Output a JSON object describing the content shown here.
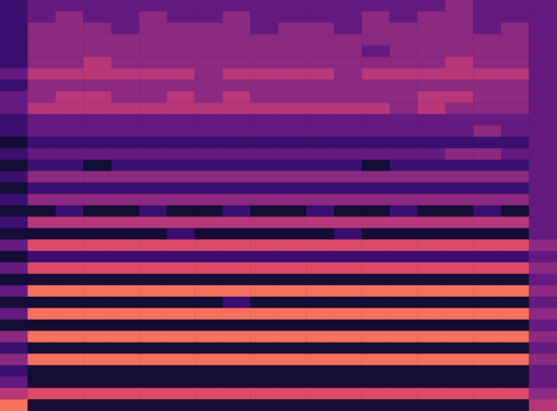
{
  "chart_data": {
    "type": "heatmap",
    "tick_labels": false,
    "grid": false,
    "value_range": [
      0,
      10
    ],
    "cells": [
      [
        2,
        3,
        3,
        3,
        3,
        3,
        3,
        3,
        3,
        3,
        3,
        3,
        3,
        3,
        3,
        3,
        4,
        3,
        3,
        3
      ],
      [
        2,
        3,
        4,
        3,
        3,
        4,
        3,
        3,
        4,
        3,
        3,
        3,
        3,
        4,
        3,
        4,
        4,
        3,
        3,
        3
      ],
      [
        2,
        4,
        4,
        4,
        3,
        4,
        4,
        4,
        4,
        3,
        4,
        4,
        3,
        4,
        4,
        4,
        4,
        3,
        4,
        3
      ],
      [
        2,
        4,
        4,
        4,
        4,
        4,
        4,
        4,
        4,
        4,
        4,
        4,
        4,
        4,
        4,
        4,
        4,
        4,
        4,
        3
      ],
      [
        2,
        4,
        4,
        4,
        4,
        4,
        4,
        4,
        4,
        4,
        4,
        4,
        4,
        3,
        4,
        4,
        4,
        4,
        4,
        3
      ],
      [
        2,
        4,
        4,
        5,
        4,
        4,
        4,
        4,
        4,
        4,
        4,
        4,
        4,
        4,
        4,
        4,
        5,
        4,
        4,
        3
      ],
      [
        3,
        5,
        5,
        5,
        5,
        5,
        5,
        4,
        5,
        5,
        5,
        5,
        4,
        5,
        5,
        5,
        5,
        5,
        5,
        3
      ],
      [
        2,
        4,
        4,
        4,
        4,
        4,
        4,
        4,
        4,
        4,
        4,
        4,
        4,
        4,
        4,
        4,
        4,
        4,
        4,
        3
      ],
      [
        3,
        4,
        5,
        5,
        4,
        4,
        5,
        4,
        5,
        4,
        4,
        4,
        4,
        4,
        4,
        5,
        5,
        4,
        4,
        3
      ],
      [
        3,
        5,
        5,
        5,
        5,
        5,
        5,
        5,
        5,
        5,
        5,
        5,
        5,
        5,
        4,
        5,
        4,
        4,
        4,
        3
      ],
      [
        2,
        3,
        3,
        3,
        3,
        3,
        3,
        3,
        3,
        3,
        3,
        3,
        3,
        3,
        3,
        3,
        3,
        3,
        3,
        3
      ],
      [
        2,
        3,
        3,
        3,
        3,
        3,
        3,
        3,
        3,
        3,
        3,
        3,
        3,
        3,
        3,
        3,
        3,
        4,
        3,
        3
      ],
      [
        1,
        2,
        2,
        2,
        2,
        2,
        2,
        2,
        2,
        2,
        2,
        2,
        2,
        2,
        2,
        2,
        2,
        2,
        2,
        3
      ],
      [
        2,
        3,
        3,
        3,
        3,
        3,
        3,
        3,
        3,
        3,
        3,
        3,
        3,
        3,
        3,
        3,
        4,
        4,
        3,
        3
      ],
      [
        1,
        2,
        2,
        1,
        2,
        2,
        2,
        2,
        2,
        2,
        2,
        2,
        2,
        1,
        2,
        2,
        2,
        2,
        2,
        3
      ],
      [
        2,
        4,
        4,
        4,
        4,
        4,
        4,
        4,
        4,
        4,
        4,
        4,
        4,
        4,
        4,
        4,
        4,
        4,
        4,
        3
      ],
      [
        1,
        2,
        2,
        2,
        2,
        2,
        2,
        2,
        2,
        2,
        2,
        2,
        2,
        2,
        2,
        2,
        2,
        2,
        2,
        3
      ],
      [
        2,
        4,
        4,
        4,
        4,
        4,
        4,
        4,
        4,
        4,
        4,
        4,
        4,
        4,
        4,
        4,
        4,
        4,
        4,
        3
      ],
      [
        1,
        1,
        2,
        1,
        1,
        2,
        1,
        1,
        2,
        1,
        1,
        2,
        1,
        1,
        2,
        1,
        1,
        2,
        1,
        3
      ],
      [
        2,
        5,
        5,
        5,
        5,
        5,
        5,
        5,
        5,
        5,
        5,
        5,
        5,
        5,
        5,
        5,
        5,
        5,
        5,
        3
      ],
      [
        1,
        1,
        1,
        1,
        1,
        1,
        2,
        1,
        1,
        1,
        1,
        1,
        2,
        1,
        1,
        1,
        1,
        1,
        1,
        3
      ],
      [
        3,
        6,
        6,
        6,
        6,
        6,
        6,
        6,
        6,
        6,
        6,
        6,
        6,
        6,
        6,
        6,
        6,
        6,
        6,
        4
      ],
      [
        1,
        2,
        2,
        2,
        2,
        2,
        2,
        2,
        2,
        2,
        2,
        2,
        2,
        2,
        2,
        2,
        2,
        2,
        2,
        3
      ],
      [
        3,
        6,
        6,
        6,
        6,
        6,
        6,
        6,
        6,
        6,
        6,
        6,
        6,
        6,
        6,
        6,
        6,
        6,
        6,
        4
      ],
      [
        1,
        1,
        1,
        1,
        1,
        1,
        1,
        1,
        1,
        1,
        1,
        1,
        1,
        1,
        1,
        1,
        1,
        1,
        1,
        3
      ],
      [
        3,
        7,
        7,
        7,
        7,
        7,
        7,
        7,
        7,
        7,
        7,
        7,
        7,
        7,
        7,
        7,
        7,
        7,
        7,
        4
      ],
      [
        1,
        1,
        1,
        1,
        1,
        1,
        1,
        1,
        2,
        1,
        1,
        1,
        1,
        1,
        1,
        1,
        1,
        1,
        1,
        3
      ],
      [
        3,
        7,
        7,
        7,
        7,
        7,
        7,
        7,
        7,
        7,
        7,
        7,
        7,
        7,
        7,
        7,
        7,
        7,
        7,
        4
      ],
      [
        1,
        1,
        1,
        1,
        1,
        1,
        1,
        1,
        1,
        1,
        1,
        1,
        1,
        1,
        1,
        1,
        1,
        1,
        1,
        3
      ],
      [
        4,
        7,
        7,
        7,
        7,
        7,
        7,
        7,
        7,
        7,
        7,
        7,
        7,
        7,
        7,
        7,
        7,
        7,
        7,
        4
      ],
      [
        2,
        1,
        1,
        1,
        1,
        1,
        1,
        1,
        1,
        1,
        1,
        1,
        1,
        1,
        1,
        1,
        1,
        1,
        1,
        3
      ],
      [
        4,
        7,
        7,
        7,
        7,
        7,
        7,
        7,
        7,
        7,
        7,
        7,
        7,
        7,
        7,
        7,
        7,
        7,
        7,
        4
      ],
      [
        2,
        1,
        1,
        1,
        1,
        1,
        1,
        1,
        1,
        1,
        1,
        1,
        1,
        1,
        1,
        1,
        1,
        1,
        1,
        3
      ],
      [
        3,
        1,
        1,
        1,
        1,
        1,
        1,
        1,
        1,
        1,
        1,
        1,
        1,
        1,
        1,
        1,
        1,
        1,
        1,
        3
      ],
      [
        5,
        6,
        6,
        6,
        6,
        6,
        6,
        6,
        6,
        6,
        6,
        6,
        6,
        6,
        6,
        6,
        6,
        6,
        6,
        4
      ],
      [
        7,
        1,
        1,
        1,
        1,
        1,
        1,
        1,
        1,
        1,
        1,
        1,
        1,
        1,
        1,
        1,
        1,
        1,
        1,
        5
      ]
    ]
  }
}
